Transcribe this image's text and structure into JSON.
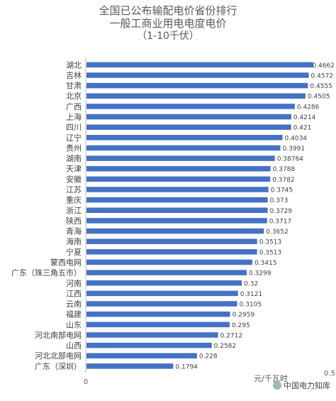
{
  "chart_data": {
    "type": "bar",
    "orientation": "horizontal",
    "title": [
      "全国已公布输配电价省份排行",
      "一般工商业用电电度电价"
    ],
    "subtitle": "（1-10千伏）",
    "categories": [
      "湖北",
      "吉林",
      "甘肃",
      "北京",
      "广西",
      "上海",
      "四川",
      "辽宁",
      "贵州",
      "湖南",
      "天津",
      "安徽",
      "江苏",
      "重庆",
      "浙江",
      "陕西",
      "青海",
      "海南",
      "宁夏",
      "蒙西电网",
      "广东（珠三角五市）",
      "河南",
      "江西",
      "云南",
      "福建",
      "山东",
      "河北南部电网",
      "山西",
      "河北北部电网",
      "广东（深圳）"
    ],
    "values": [
      0.4662,
      0.4572,
      0.4555,
      0.4505,
      0.4286,
      0.4214,
      0.421,
      0.4034,
      0.3991,
      0.38764,
      0.3788,
      0.3782,
      0.3745,
      0.373,
      0.3729,
      0.3717,
      0.3652,
      0.3513,
      0.3513,
      0.3415,
      0.3299,
      0.32,
      0.3121,
      0.3105,
      0.2959,
      0.295,
      0.2712,
      0.2582,
      0.228,
      0.1794
    ],
    "value_labels": [
      "0.4662",
      "0.4572",
      "0.4555",
      "0.4505",
      "0.4286",
      "0.4214",
      "0.421",
      "0.4034",
      "0.3991",
      "0.38764",
      "0.3788",
      "0.3782",
      "0.3745",
      "0.373",
      "0.3729",
      "0.3717",
      "0.3652",
      "0.3513",
      "0.3513",
      "0.3415",
      "0.3299",
      "0.32",
      "0.3121",
      "0.3105",
      "0.2959",
      "0.295",
      "0.2712",
      "0.2582",
      "0.228",
      "0.1794"
    ],
    "xlim": [
      0,
      0.5
    ],
    "x_tick_labels": [
      "0",
      "0.5"
    ],
    "unit_label": "元/千瓦时",
    "bar_color": "#4472C4",
    "grid": false
  },
  "watermark": "中国电力知库"
}
